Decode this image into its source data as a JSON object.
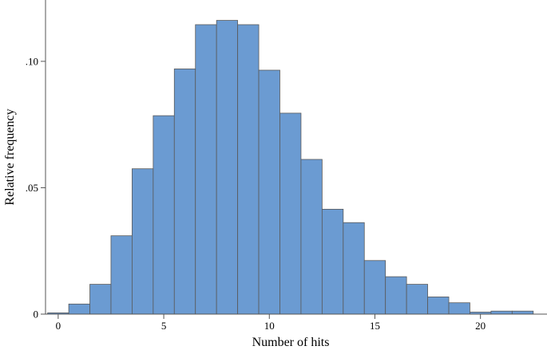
{
  "chart_data": {
    "type": "bar",
    "subtype": "histogram",
    "title": "",
    "xlabel": "Number of hits",
    "ylabel": "Relative frequency",
    "bin_width": 1,
    "bins": [
      {
        "x": 0,
        "value": 0.0005
      },
      {
        "x": 1,
        "value": 0.004
      },
      {
        "x": 2,
        "value": 0.0118
      },
      {
        "x": 3,
        "value": 0.031
      },
      {
        "x": 4,
        "value": 0.0575
      },
      {
        "x": 5,
        "value": 0.0785
      },
      {
        "x": 6,
        "value": 0.097
      },
      {
        "x": 7,
        "value": 0.1145
      },
      {
        "x": 8,
        "value": 0.1162
      },
      {
        "x": 9,
        "value": 0.1145
      },
      {
        "x": 10,
        "value": 0.0965
      },
      {
        "x": 11,
        "value": 0.0795
      },
      {
        "x": 12,
        "value": 0.0612
      },
      {
        "x": 13,
        "value": 0.0415
      },
      {
        "x": 14,
        "value": 0.0362
      },
      {
        "x": 15,
        "value": 0.0212
      },
      {
        "x": 16,
        "value": 0.0148
      },
      {
        "x": 17,
        "value": 0.0118
      },
      {
        "x": 18,
        "value": 0.0068
      },
      {
        "x": 19,
        "value": 0.0045
      },
      {
        "x": 20,
        "value": 0.0008
      },
      {
        "x": 21,
        "value": 0.0012
      },
      {
        "x": 22,
        "value": 0.0012
      }
    ],
    "xlim": [
      -0.6,
      23
    ],
    "ylim": [
      0,
      0.123
    ],
    "x_ticks": [
      {
        "value": 0,
        "label": "0"
      },
      {
        "value": 5,
        "label": "5"
      },
      {
        "value": 10,
        "label": "10"
      },
      {
        "value": 15,
        "label": "15"
      },
      {
        "value": 20,
        "label": "20"
      }
    ],
    "y_ticks": [
      {
        "value": 0,
        "label": "0"
      },
      {
        "value": 0.05,
        "label": ".05"
      },
      {
        "value": 0.1,
        "label": ".10"
      }
    ],
    "bar_color": "#6b9bd2",
    "grid": false,
    "legend": "none"
  }
}
